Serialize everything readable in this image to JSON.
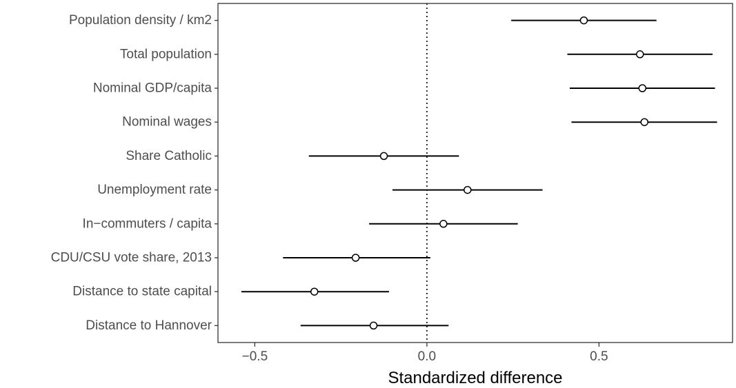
{
  "chart_data": {
    "type": "dot-whisker",
    "title": "",
    "xlabel": "Standardized difference",
    "ylabel": "",
    "xlim": [
      -0.607,
      0.888
    ],
    "x_ticks": [
      -0.5,
      0.0,
      0.5
    ],
    "x_tick_labels": [
      "−0.5",
      "0.0",
      "0.5"
    ],
    "reference_line": 0,
    "grid": false,
    "categories": [
      "Population density / km2",
      "Total population",
      "Nominal GDP/capita",
      "Nominal wages",
      "Share Catholic",
      "Unemployment rate",
      "In−commuters / capita",
      "CDU/CSU vote share, 2013",
      "Distance to state capital",
      "Distance to Hannover"
    ],
    "estimates": [
      0.456,
      0.619,
      0.626,
      0.632,
      -0.125,
      0.118,
      0.048,
      -0.207,
      -0.327,
      -0.155
    ],
    "lower": [
      0.245,
      0.408,
      0.415,
      0.42,
      -0.343,
      -0.1,
      -0.168,
      -0.418,
      -0.539,
      -0.367
    ],
    "upper": [
      0.667,
      0.83,
      0.837,
      0.843,
      0.093,
      0.336,
      0.264,
      0.01,
      -0.11,
      0.063
    ]
  }
}
